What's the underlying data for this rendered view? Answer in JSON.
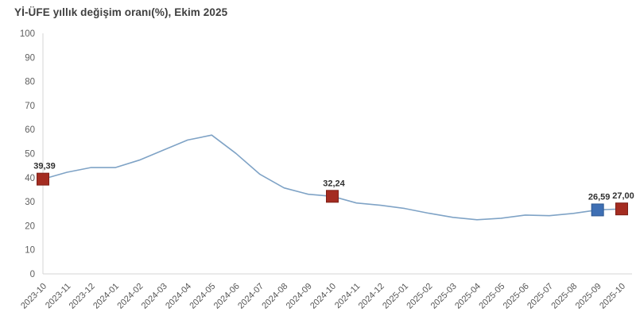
{
  "chart": {
    "title": "Yİ-ÜFE yıllık değişim oranı(%), Ekim 2025"
  },
  "chart_data": {
    "type": "line",
    "title": "Yİ-ÜFE yıllık değişim oranı(%), Ekim 2025",
    "categories": [
      "2023-10",
      "2023-11",
      "2023-12",
      "2024-01",
      "2024-02",
      "2024-03",
      "2024-04",
      "2024-05",
      "2024-06",
      "2024-07",
      "2024-08",
      "2024-09",
      "2024-10",
      "2024-11",
      "2024-12",
      "2025-01",
      "2025-02",
      "2025-03",
      "2025-04",
      "2025-05",
      "2025-06",
      "2025-07",
      "2025-08",
      "2025-09",
      "2025-10"
    ],
    "values": [
      39.39,
      42.25,
      44.22,
      44.2,
      47.29,
      51.47,
      55.66,
      57.68,
      50.09,
      41.37,
      35.75,
      33.09,
      32.24,
      29.47,
      28.52,
      27.2,
      25.21,
      23.5,
      22.5,
      23.13,
      24.45,
      24.19,
      25.16,
      26.59,
      27.0
    ],
    "xlabel": "",
    "ylabel": "",
    "ylim": [
      0,
      100
    ],
    "ytick_step": 10,
    "grid": "off",
    "legend": "off",
    "line_color": "#7fa3c6",
    "axis_color": "#d6d6d6",
    "highlights": [
      {
        "category": "2023-10",
        "value": 39.39,
        "label": "39,39",
        "fill": "#a42c21",
        "border": "#7e2018"
      },
      {
        "category": "2024-10",
        "value": 32.24,
        "label": "32,24",
        "fill": "#a42c21",
        "border": "#7e2018"
      },
      {
        "category": "2025-09",
        "value": 26.59,
        "label": "26,59",
        "fill": "#3e6fb4",
        "border": "#2d578f"
      },
      {
        "category": "2025-10",
        "value": 27.0,
        "label": "27,00",
        "fill": "#a42c21",
        "border": "#7e2018"
      }
    ]
  }
}
